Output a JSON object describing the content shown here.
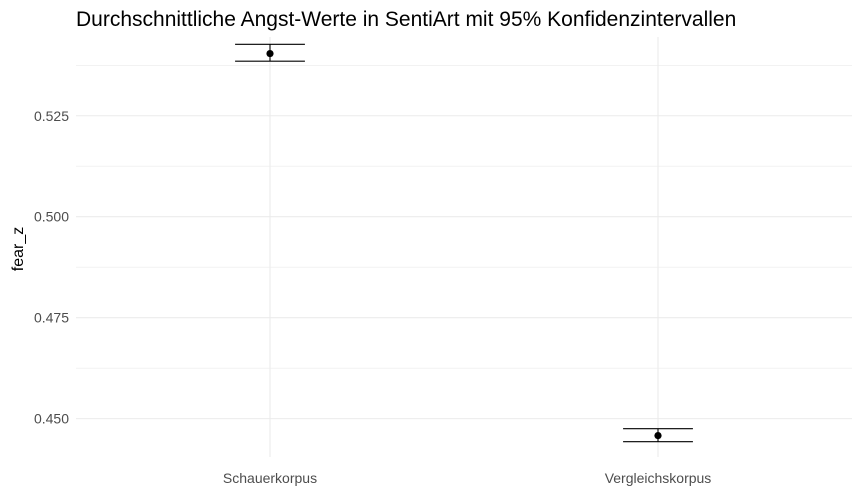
{
  "chart_data": {
    "type": "errorbar",
    "title": "Durchschnittliche Angst-Werte in SentiArt mit 95% Konfidenzintervallen",
    "xlabel": "",
    "ylabel": "fear_z",
    "categories": [
      "Schauerkorpus",
      "Vergleichskorpus"
    ],
    "series": [
      {
        "values": [
          0.5404,
          0.4458
        ],
        "ci_lower": [
          0.5385,
          0.4443
        ],
        "ci_upper": [
          0.5427,
          0.4475
        ]
      }
    ],
    "y_ticks": [
      0.45,
      0.475,
      0.5,
      0.525
    ],
    "y_tick_labels": [
      "0.450",
      "0.475",
      "0.500",
      "0.525"
    ],
    "ylim": [
      0.4405,
      0.5445
    ],
    "grid": true,
    "theme": "minimal",
    "point_color": "#000000",
    "grid_color": "#ebebeb"
  }
}
